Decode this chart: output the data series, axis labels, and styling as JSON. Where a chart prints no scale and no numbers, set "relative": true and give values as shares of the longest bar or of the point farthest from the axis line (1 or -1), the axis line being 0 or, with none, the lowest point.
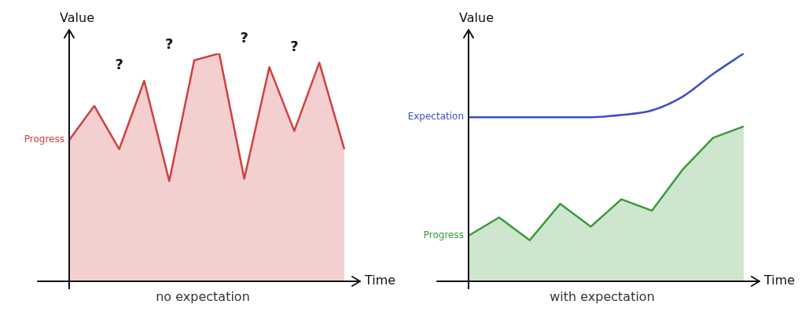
{
  "chart_data": [
    {
      "type": "area",
      "subtitle": "no expectation",
      "xlabel": "Time",
      "ylabel": "Value",
      "relative": true,
      "legend": false,
      "marker": "none",
      "categories": [
        null,
        null,
        null,
        null,
        null,
        null,
        null,
        null,
        null,
        null,
        null,
        null
      ],
      "series": [
        {
          "name": "Progress",
          "color": "#d04040",
          "values": [
            0.62,
            0.77,
            0.58,
            0.88,
            0.44,
            0.97,
            1,
            0.45,
            0.94,
            0.66,
            0.96,
            0.58
          ]
        }
      ],
      "annotations": [
        "?",
        "?",
        "?",
        "?"
      ]
    },
    {
      "type": "area",
      "subtitle": "with expectation",
      "xlabel": "Time",
      "ylabel": "Value",
      "relative": true,
      "legend": false,
      "marker": "none",
      "categories": [
        null,
        null,
        null,
        null,
        null,
        null,
        null,
        null,
        null,
        null
      ],
      "series": [
        {
          "name": "Expectation",
          "type": "line",
          "color": "#3b4fc4",
          "values": [
            0.72,
            0.72,
            0.72,
            0.72,
            0.72,
            0.73,
            0.75,
            0.81,
            0.91,
            1
          ]
        },
        {
          "name": "Progress",
          "color": "#3a9a3a",
          "values": [
            0.2,
            0.28,
            0.18,
            0.34,
            0.24,
            0.36,
            0.31,
            0.49,
            0.63,
            0.68
          ]
        }
      ]
    }
  ]
}
